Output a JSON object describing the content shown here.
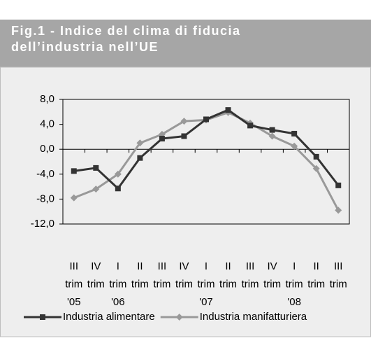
{
  "chart_data": {
    "type": "line",
    "title": [
      "Fig.1 - Indice del clima di fiducia",
      "dell’industria nell’UE"
    ],
    "categories": [
      [
        "III",
        "trim",
        "'05"
      ],
      [
        "IV",
        "trim"
      ],
      [
        "I",
        "trim",
        "'06"
      ],
      [
        "II",
        "trim"
      ],
      [
        "III",
        "trim"
      ],
      [
        "IV",
        "trim"
      ],
      [
        "I",
        "trim",
        "'07"
      ],
      [
        "II",
        "trim"
      ],
      [
        "III",
        "trim"
      ],
      [
        "IV",
        "trim"
      ],
      [
        "I",
        "trim",
        "'08"
      ],
      [
        "II",
        "trim"
      ],
      [
        "III",
        "trim"
      ]
    ],
    "series": [
      {
        "name": "Industria alimentare",
        "color": "#333333",
        "marker": "square",
        "values": [
          -3.5,
          -3.0,
          -6.3,
          -1.4,
          1.7,
          2.1,
          4.8,
          6.3,
          3.8,
          3.1,
          2.5,
          -1.2,
          -5.8
        ]
      },
      {
        "name": "Industria manifatturiera",
        "color": "#999999",
        "marker": "diamond",
        "values": [
          -7.8,
          -6.4,
          -4.0,
          1.0,
          2.4,
          4.5,
          4.7,
          5.9,
          4.2,
          2.1,
          0.5,
          -3.1,
          -9.8
        ]
      }
    ],
    "ylim": [
      -12,
      8
    ],
    "yticks": [
      {
        "value": -12,
        "label": "-12,0"
      },
      {
        "value": -8,
        "label": "-8,0"
      },
      {
        "value": -4,
        "label": "-4,0"
      },
      {
        "value": 0,
        "label": "0,0"
      },
      {
        "value": 4,
        "label": "4,0"
      },
      {
        "value": 8,
        "label": "8,0"
      }
    ],
    "legend": "bottom"
  }
}
